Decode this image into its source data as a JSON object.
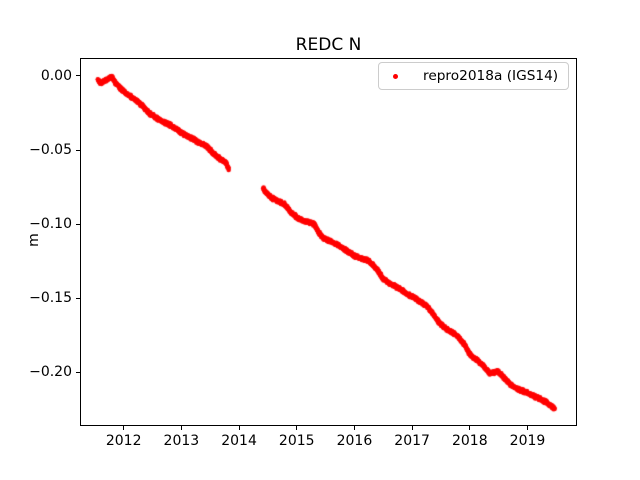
{
  "title": "REDC N",
  "ylabel": "m",
  "legend": {
    "label": "repro2018a (IGS14)",
    "marker_color": "#ff0000"
  },
  "colors": {
    "series": "#ff0000",
    "spine": "#000000",
    "legend_edge": "#cccccc",
    "background": "#ffffff"
  },
  "chart_data": {
    "type": "scatter",
    "title": "REDC N",
    "xlabel": "",
    "ylabel": "m",
    "grid": false,
    "legend_position": "upper right",
    "xlim": [
      2011.2425,
      2019.851
    ],
    "ylim": [
      -0.2362,
      0.01243
    ],
    "xticks": [
      2012,
      2013,
      2014,
      2015,
      2016,
      2017,
      2018,
      2019
    ],
    "ytick_values": [
      0.0,
      -0.05,
      -0.1,
      -0.15,
      -0.2
    ],
    "ytick_labels": [
      "0.00",
      "−0.05",
      "−0.10",
      "−0.15",
      "−0.20"
    ],
    "series": [
      {
        "name": "repro2018a (IGS14)",
        "color": "#ff0000",
        "marker": "dot",
        "marker_size_px": 4.5,
        "band": {
          "noise_m": 0.0013,
          "points_per_year": 300,
          "seed": 42
        },
        "segments": [
          {
            "anchors": [
              [
                2011.55,
                -0.0022
              ],
              [
                2011.6,
                -0.0045
              ],
              [
                2011.66,
                -0.0038
              ],
              [
                2011.73,
                -0.0018
              ],
              [
                2011.8,
                -0.0008
              ],
              [
                2011.88,
                -0.006
              ],
              [
                2012.0,
                -0.0102
              ],
              [
                2012.1,
                -0.0135
              ],
              [
                2012.22,
                -0.0165
              ],
              [
                2012.32,
                -0.02
              ],
              [
                2012.45,
                -0.0255
              ],
              [
                2012.55,
                -0.028
              ],
              [
                2012.68,
                -0.031
              ],
              [
                2012.8,
                -0.033
              ],
              [
                2012.92,
                -0.036
              ],
              [
                2013.05,
                -0.0395
              ],
              [
                2013.18,
                -0.042
              ],
              [
                2013.3,
                -0.045
              ],
              [
                2013.42,
                -0.047
              ],
              [
                2013.55,
                -0.052
              ],
              [
                2013.65,
                -0.0555
              ],
              [
                2013.72,
                -0.057
              ],
              [
                2013.78,
                -0.059
              ],
              [
                2013.82,
                -0.0625
              ]
            ]
          },
          {
            "anchors": [
              [
                2014.42,
                -0.076
              ],
              [
                2014.48,
                -0.0795
              ],
              [
                2014.55,
                -0.082
              ],
              [
                2014.65,
                -0.084
              ],
              [
                2014.78,
                -0.0865
              ],
              [
                2014.9,
                -0.092
              ],
              [
                2015.0,
                -0.0955
              ],
              [
                2015.1,
                -0.0975
              ],
              [
                2015.22,
                -0.099
              ],
              [
                2015.3,
                -0.1
              ],
              [
                2015.38,
                -0.106
              ],
              [
                2015.48,
                -0.11
              ],
              [
                2015.6,
                -0.112
              ],
              [
                2015.72,
                -0.1145
              ],
              [
                2015.85,
                -0.1175
              ],
              [
                2016.0,
                -0.1215
              ],
              [
                2016.12,
                -0.1235
              ],
              [
                2016.25,
                -0.125
              ],
              [
                2016.38,
                -0.13
              ],
              [
                2016.5,
                -0.137
              ],
              [
                2016.62,
                -0.1405
              ],
              [
                2016.75,
                -0.143
              ],
              [
                2016.88,
                -0.1465
              ],
              [
                2017.0,
                -0.149
              ],
              [
                2017.12,
                -0.152
              ],
              [
                2017.25,
                -0.155
              ],
              [
                2017.35,
                -0.16
              ],
              [
                2017.48,
                -0.1675
              ],
              [
                2017.6,
                -0.171
              ],
              [
                2017.75,
                -0.1745
              ],
              [
                2017.9,
                -0.181
              ],
              [
                2018.0,
                -0.188
              ],
              [
                2018.12,
                -0.192
              ],
              [
                2018.25,
                -0.1965
              ],
              [
                2018.35,
                -0.201
              ],
              [
                2018.48,
                -0.1995
              ],
              [
                2018.6,
                -0.204
              ],
              [
                2018.72,
                -0.209
              ],
              [
                2018.85,
                -0.212
              ],
              [
                2019.0,
                -0.214
              ],
              [
                2019.15,
                -0.217
              ],
              [
                2019.3,
                -0.22
              ],
              [
                2019.42,
                -0.223
              ],
              [
                2019.47,
                -0.225
              ]
            ]
          }
        ]
      }
    ]
  }
}
